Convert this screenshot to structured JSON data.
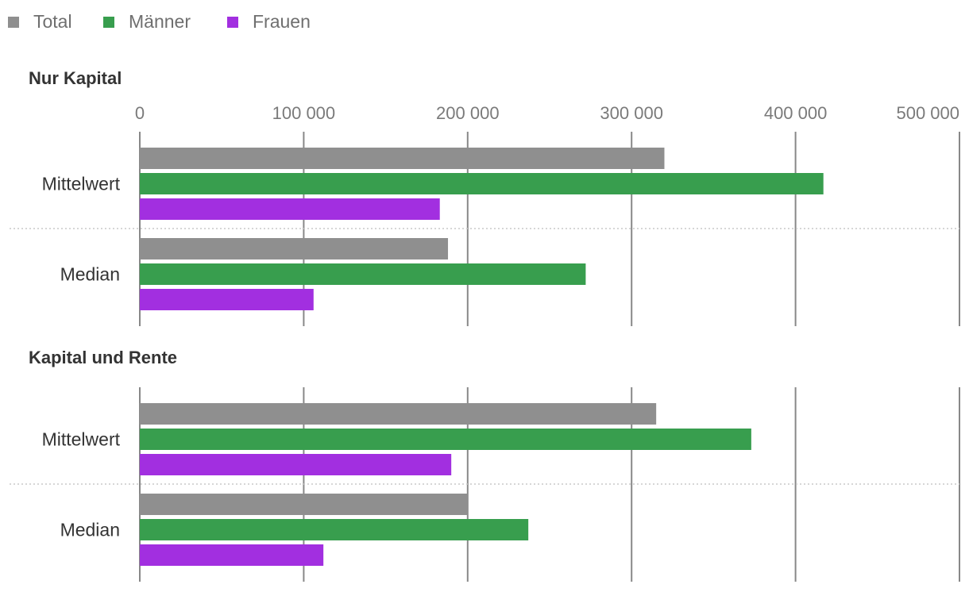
{
  "chart_data": {
    "type": "bar",
    "orientation": "horizontal",
    "legend": {
      "placement": "top-left",
      "entries": [
        {
          "name": "Total",
          "color": "#8f8f8f"
        },
        {
          "name": "Männer",
          "color": "#389e4e"
        },
        {
          "name": "Frauen",
          "color": "#a22fe0"
        }
      ]
    },
    "xlim": [
      0,
      500000
    ],
    "ticks": [
      {
        "value": 0,
        "label": "0"
      },
      {
        "value": 100000,
        "label": "100 000"
      },
      {
        "value": 200000,
        "label": "200 000"
      },
      {
        "value": 300000,
        "label": "300 000"
      },
      {
        "value": 400000,
        "label": "400 000"
      },
      {
        "value": 500000,
        "label": "500 000"
      }
    ],
    "grid": true,
    "panels": [
      {
        "title": "Nur Kapital",
        "categories": [
          "Mittelwert",
          "Median"
        ],
        "series": [
          {
            "name": "Total",
            "values": [
              320000,
              188000
            ]
          },
          {
            "name": "Männer",
            "values": [
              417000,
              272000
            ]
          },
          {
            "name": "Frauen",
            "values": [
              183000,
              106000
            ]
          }
        ]
      },
      {
        "title": "Kapital und Rente",
        "categories": [
          "Mittelwert",
          "Median"
        ],
        "series": [
          {
            "name": "Total",
            "values": [
              315000,
              200000
            ]
          },
          {
            "name": "Männer",
            "values": [
              373000,
              237000
            ]
          },
          {
            "name": "Frauen",
            "values": [
              190000,
              112000
            ]
          }
        ]
      }
    ]
  }
}
